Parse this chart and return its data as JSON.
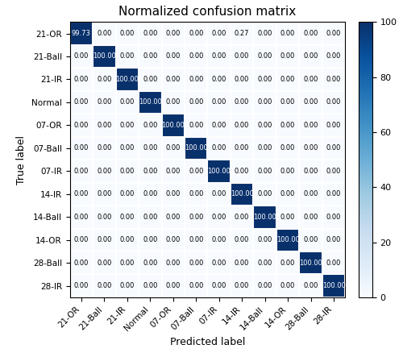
{
  "title": "Normalized confusion matrix",
  "xlabel": "Predicted label",
  "ylabel": "True label",
  "classes": [
    "21-OR",
    "21-Ball",
    "21-IR",
    "Normal",
    "07-OR",
    "07-Ball",
    "07-IR",
    "14-IR",
    "14-Ball",
    "14-OR",
    "28-Ball",
    "28-IR"
  ],
  "matrix": [
    [
      99.73,
      0.0,
      0.0,
      0.0,
      0.0,
      0.0,
      0.0,
      0.27,
      0.0,
      0.0,
      0.0,
      0.0
    ],
    [
      0.0,
      100.0,
      0.0,
      0.0,
      0.0,
      0.0,
      0.0,
      0.0,
      0.0,
      0.0,
      0.0,
      0.0
    ],
    [
      0.0,
      0.0,
      100.0,
      0.0,
      0.0,
      0.0,
      0.0,
      0.0,
      0.0,
      0.0,
      0.0,
      0.0
    ],
    [
      0.0,
      0.0,
      0.0,
      100.0,
      0.0,
      0.0,
      0.0,
      0.0,
      0.0,
      0.0,
      0.0,
      0.0
    ],
    [
      0.0,
      0.0,
      0.0,
      0.0,
      100.0,
      0.0,
      0.0,
      0.0,
      0.0,
      0.0,
      0.0,
      0.0
    ],
    [
      0.0,
      0.0,
      0.0,
      0.0,
      0.0,
      100.0,
      0.0,
      0.0,
      0.0,
      0.0,
      0.0,
      0.0
    ],
    [
      0.0,
      0.0,
      0.0,
      0.0,
      0.0,
      0.0,
      100.0,
      0.0,
      0.0,
      0.0,
      0.0,
      0.0
    ],
    [
      0.0,
      0.0,
      0.0,
      0.0,
      0.0,
      0.0,
      0.0,
      100.0,
      0.0,
      0.0,
      0.0,
      0.0
    ],
    [
      0.0,
      0.0,
      0.0,
      0.0,
      0.0,
      0.0,
      0.0,
      0.0,
      100.0,
      0.0,
      0.0,
      0.0
    ],
    [
      0.0,
      0.0,
      0.0,
      0.0,
      0.0,
      0.0,
      0.0,
      0.0,
      0.0,
      100.0,
      0.0,
      0.0
    ],
    [
      0.0,
      0.0,
      0.0,
      0.0,
      0.0,
      0.0,
      0.0,
      0.0,
      0.0,
      0.0,
      100.0,
      0.0
    ],
    [
      0.0,
      0.0,
      0.0,
      0.0,
      0.0,
      0.0,
      0.0,
      0.0,
      0.0,
      0.0,
      0.0,
      100.0
    ]
  ],
  "cmap": "Blues",
  "vmin": 0,
  "vmax": 100,
  "colorbar_ticks": [
    0,
    20,
    40,
    60,
    80,
    100
  ],
  "text_threshold": 50,
  "dark_text_color": "white",
  "light_text_color": "black",
  "cell_font_size": 6.0,
  "tick_font_size": 7.5,
  "label_font_size": 9,
  "title_font_size": 11
}
